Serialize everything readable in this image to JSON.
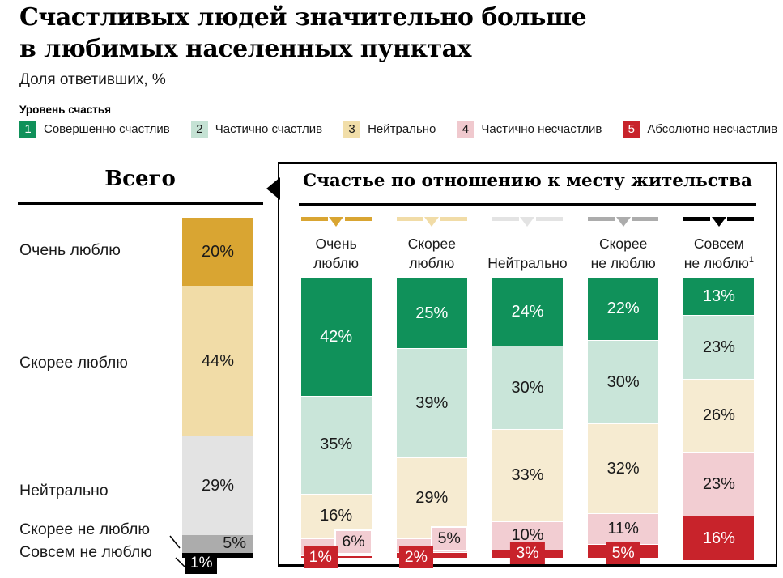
{
  "header": {
    "title_line1": "Счастливых людей значительно больше",
    "title_line2": "в любимых населенных пунктах",
    "subtitle": "Доля ответивших, %"
  },
  "legend": {
    "title": "Уровень счастья",
    "items": [
      {
        "num": "1",
        "label": "Совершенно счастлив",
        "color": "#10915A",
        "text_color": "#FFFFFF"
      },
      {
        "num": "2",
        "label": "Частично счастлив",
        "color": "#C5E2D4",
        "text_color": "#1A1A1A"
      },
      {
        "num": "3",
        "label": "Нейтрально",
        "color": "#F1DEA9",
        "text_color": "#1A1A1A"
      },
      {
        "num": "4",
        "label": "Частично несчастлив",
        "color": "#F0C9CE",
        "text_color": "#1A1A1A"
      },
      {
        "num": "5",
        "label": "Абсолютно несчастлив",
        "color": "#C8232B",
        "text_color": "#FFFFFF"
      }
    ]
  },
  "left_panel": {
    "title": "Всего",
    "segments": [
      {
        "row_label": "Очень люблю",
        "value": 20,
        "display": "20%",
        "color": "#D9A532",
        "text_color": "#1A1A1A"
      },
      {
        "row_label": "Скорее люблю",
        "value": 44,
        "display": "44%",
        "color": "#F1DCA7",
        "text_color": "#1A1A1A"
      },
      {
        "row_label": "Нейтрально",
        "value": 29,
        "display": "29%",
        "color": "#E3E3E3",
        "text_color": "#1A1A1A"
      },
      {
        "row_label": "Скорее не люблю",
        "value": 5,
        "display": "5%",
        "color": "#ACACAC",
        "text_color": "#1A1A1A"
      },
      {
        "row_label": "Совсем не люблю",
        "value": 1,
        "display": "1%",
        "color": "#000000",
        "text_color": "#FFFFFF"
      }
    ]
  },
  "right_panel": {
    "title": "Счастье по отношению к месту жительства",
    "segment_colors": [
      "#10915A",
      "#C9E5D9",
      "#F6EBD1",
      "#F2CDD2",
      "#C8232B"
    ],
    "segment_text_colors": [
      "#FFFFFF",
      "#1A1A1A",
      "#1A1A1A",
      "#1A1A1A",
      "#FFFFFF"
    ],
    "columns": [
      {
        "label_line1": "Очень",
        "label_line2": "люблю",
        "sup": "",
        "marker_color": "#D9A532",
        "values": [
          42,
          35,
          16,
          6,
          1
        ]
      },
      {
        "label_line1": "Скорее",
        "label_line2": "люблю",
        "sup": "",
        "marker_color": "#F1DCA7",
        "values": [
          25,
          39,
          29,
          5,
          2
        ]
      },
      {
        "label_line1": "",
        "label_line2": "Нейтрально",
        "sup": "",
        "marker_color": "#E3E3E3",
        "values": [
          24,
          30,
          33,
          10,
          3
        ]
      },
      {
        "label_line1": "Скорее",
        "label_line2": "не люблю",
        "sup": "",
        "marker_color": "#ACACAC",
        "values": [
          22,
          30,
          32,
          11,
          5
        ]
      },
      {
        "label_line1": "Совсем",
        "label_line2": "не люблю",
        "sup": "1",
        "marker_color": "#000000",
        "values": [
          13,
          23,
          26,
          23,
          16
        ]
      }
    ]
  },
  "chart_data": {
    "type": "bar",
    "stacked": true,
    "unit": "%",
    "title": "Счастливых людей значительно больше в любимых населенных пунктах",
    "subtitle": "Доля ответивших, %",
    "legend_title": "Уровень счастья",
    "happiness_levels": [
      "Совершенно счастлив",
      "Частично счастлив",
      "Нейтрально",
      "Частично несчастлив",
      "Абсолютно несчастлив"
    ],
    "total_chart": {
      "title": "Всего",
      "categories": [
        "Очень люблю",
        "Скорее люблю",
        "Нейтрально",
        "Скорее не люблю",
        "Совсем не люблю"
      ],
      "values": [
        20,
        44,
        29,
        5,
        1
      ]
    },
    "by_attitude_chart": {
      "title": "Счастье по отношению к месту жительства",
      "categories": [
        "Очень люблю",
        "Скорее люблю",
        "Нейтрально",
        "Скорее не люблю",
        "Совсем не люблю"
      ],
      "series_axis": "happiness_levels",
      "series": [
        {
          "name": "Очень люблю",
          "values": [
            42,
            35,
            16,
            6,
            1
          ]
        },
        {
          "name": "Скорее люблю",
          "values": [
            25,
            39,
            29,
            5,
            2
          ]
        },
        {
          "name": "Нейтрально",
          "values": [
            24,
            30,
            33,
            10,
            3
          ]
        },
        {
          "name": "Скорее не люблю",
          "values": [
            22,
            30,
            32,
            11,
            5
          ]
        },
        {
          "name": "Совсем не люблю",
          "values": [
            13,
            23,
            26,
            23,
            16
          ]
        }
      ],
      "footnote_marker": "1"
    }
  }
}
